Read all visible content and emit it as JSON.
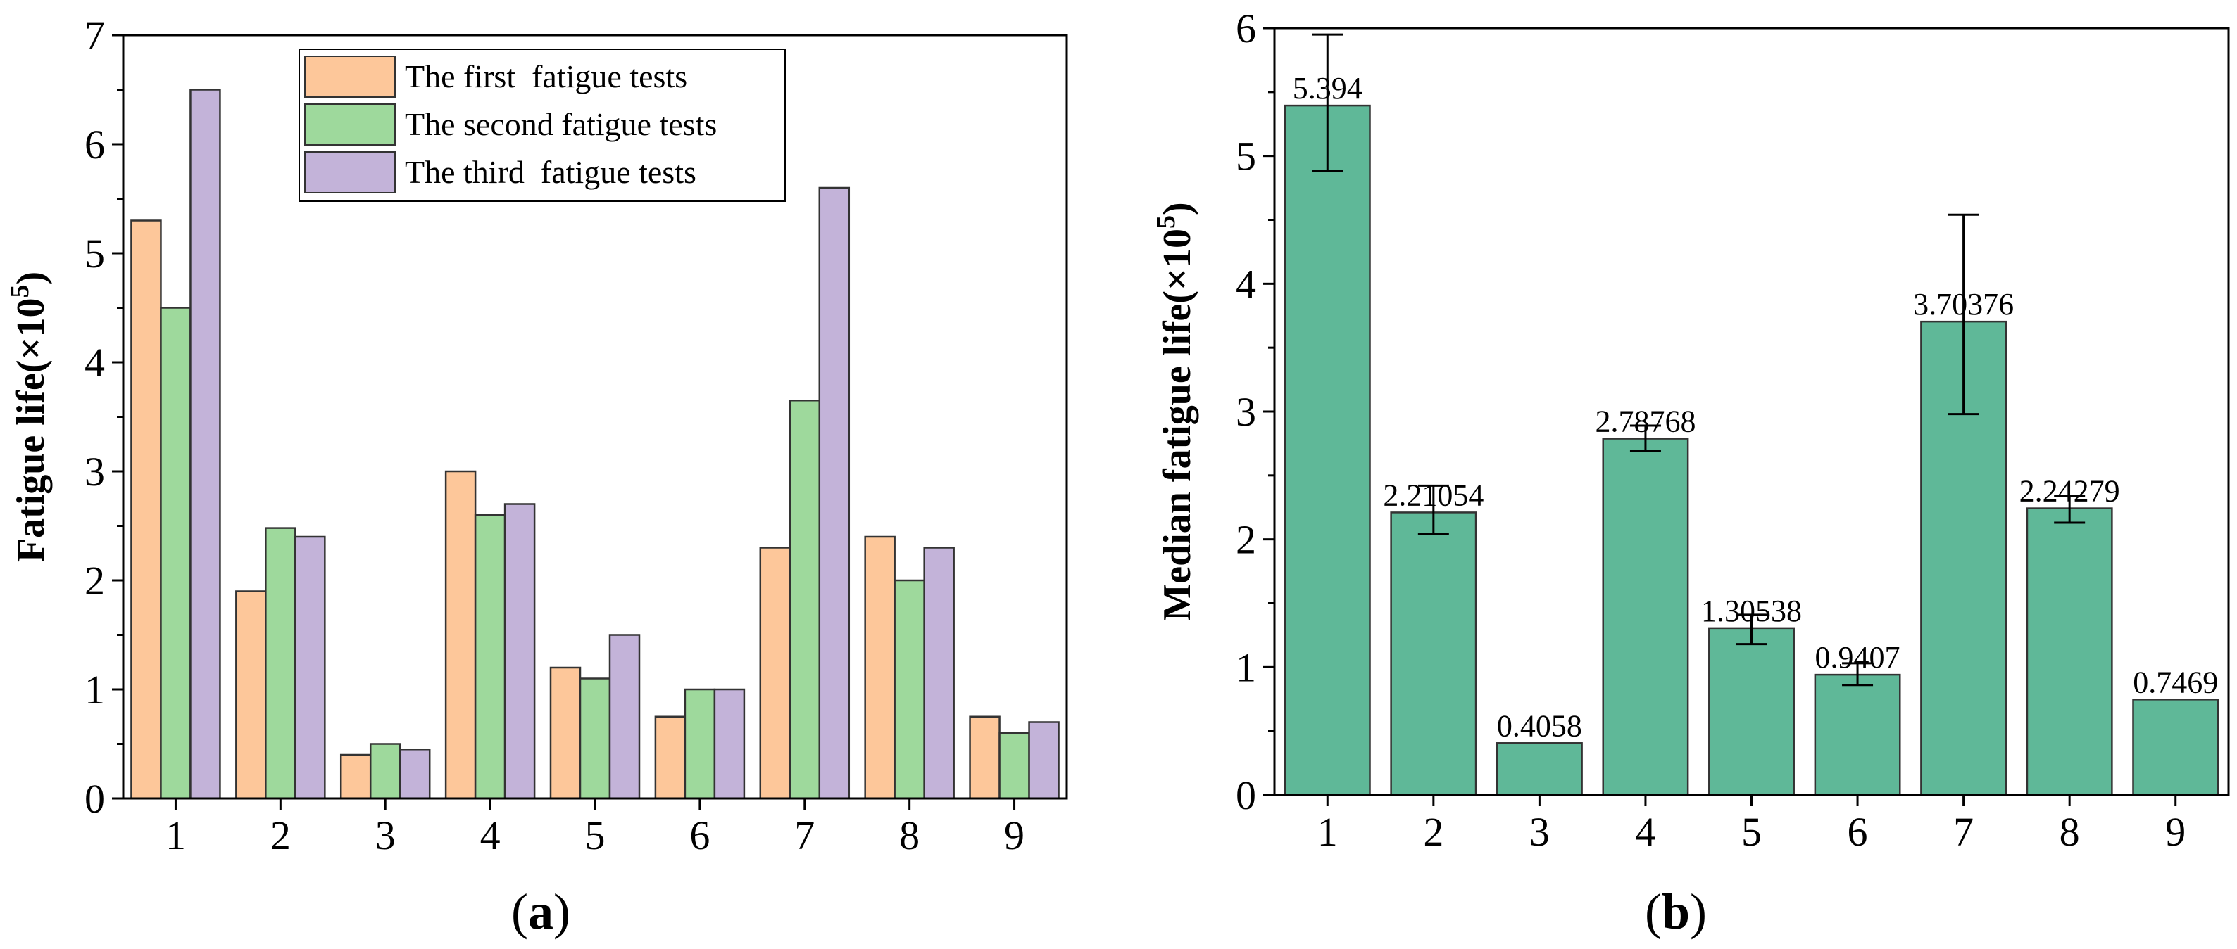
{
  "chart_data": [
    {
      "type": "bar",
      "panel_label": "(a)",
      "ylabel": "Fatigue life(×10",
      "ylabel_superscript": "5",
      "ylabel_close": ")",
      "xlabel": "",
      "ylim": [
        0,
        7
      ],
      "yticks": [
        0,
        1,
        2,
        3,
        4,
        5,
        6,
        7
      ],
      "categories": [
        "1",
        "2",
        "3",
        "4",
        "5",
        "6",
        "7",
        "8",
        "9"
      ],
      "legend_position": "top-center",
      "series": [
        {
          "name": "The first  fatigue tests",
          "color": "#fdc79a",
          "values": [
            5.3,
            1.9,
            0.4,
            3.0,
            1.2,
            0.75,
            2.3,
            2.4,
            0.75
          ]
        },
        {
          "name": "The second fatigue tests",
          "color": "#9ed99c",
          "values": [
            4.5,
            2.48,
            0.5,
            2.6,
            1.1,
            1.0,
            3.65,
            2.0,
            0.6
          ]
        },
        {
          "name": "The third  fatigue tests",
          "color": "#c3b3d9",
          "values": [
            6.5,
            2.4,
            0.45,
            2.7,
            1.5,
            1.0,
            5.6,
            2.3,
            0.7
          ]
        }
      ]
    },
    {
      "type": "bar",
      "panel_label": "(b)",
      "ylabel": "Median fatigue life(×10",
      "ylabel_superscript": "5",
      "ylabel_close": ")",
      "xlabel": "",
      "ylim": [
        0,
        6
      ],
      "yticks": [
        0,
        1,
        2,
        3,
        4,
        5,
        6
      ],
      "categories": [
        "1",
        "2",
        "3",
        "4",
        "5",
        "6",
        "7",
        "8",
        "9"
      ],
      "color": "#5fb898",
      "values": [
        5.394,
        2.21054,
        0.4058,
        2.78768,
        1.30538,
        0.9407,
        3.70376,
        2.24279,
        0.7469
      ],
      "value_labels": [
        "5.394",
        "2.21054",
        "0.4058",
        "2.78768",
        "1.30538",
        "0.9407",
        "3.70376",
        "2.24279",
        "0.7469"
      ],
      "error_low": [
        4.88,
        2.04,
        null,
        2.69,
        1.18,
        0.86,
        2.98,
        2.13,
        null
      ],
      "error_high": [
        5.95,
        2.42,
        null,
        2.89,
        1.41,
        1.03,
        4.54,
        2.34,
        null
      ]
    }
  ]
}
